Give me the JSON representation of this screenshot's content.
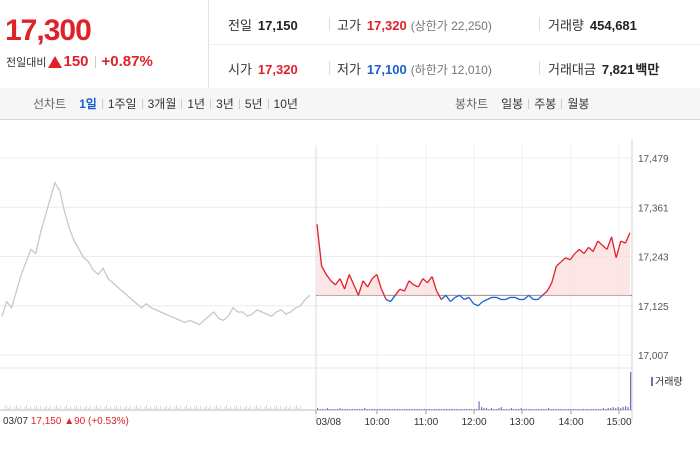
{
  "price": {
    "current": "17,300",
    "change_label": "전일대비",
    "change_abs": "150",
    "change_pct": "+0.87%"
  },
  "stats": {
    "prev_close": {
      "label": "전일",
      "value": "17,150"
    },
    "high": {
      "label": "고가",
      "value": "17,320",
      "note": "(상한가 22,250)"
    },
    "volume": {
      "label": "거래량",
      "value": "454,681"
    },
    "open": {
      "label": "시가",
      "value": "17,320"
    },
    "low": {
      "label": "저가",
      "value": "17,100",
      "note": "(하한가 12,010)"
    },
    "amount": {
      "label": "거래대금",
      "value": "7,821",
      "unit": "백만"
    }
  },
  "line_chart_tabs": {
    "label": "선차트",
    "items": [
      "1일",
      "1주일",
      "3개월",
      "1년",
      "3년",
      "5년",
      "10년"
    ],
    "active": "1일"
  },
  "candle_chart_tabs": {
    "label": "봉차트",
    "items": [
      "일봉",
      "주봉",
      "월봉"
    ]
  },
  "colors": {
    "up": "#e0212a",
    "down": "#1a5fcf",
    "prev_day": "#c8c8c8",
    "volume": "#7b6bbf"
  },
  "chart_data": {
    "type": "line",
    "x_ticks": [
      "03/08",
      "10:00",
      "11:00",
      "12:00",
      "13:00",
      "14:00",
      "15:00"
    ],
    "y_ticks": [
      "17,479",
      "17,361",
      "17,243",
      "17,125",
      "17,007"
    ],
    "ylim": [
      17007,
      17479
    ],
    "reference_price": 17150,
    "volume_label": "거래량",
    "prev_day_label": {
      "date": "03/07",
      "close": "17,150",
      "change": "90",
      "pct": "(+0.53%)"
    },
    "series": [
      {
        "values": [
          17100,
          17135,
          17120,
          17160,
          17200,
          17230,
          17260,
          17250,
          17300,
          17340,
          17380,
          17420,
          17400,
          17350,
          17310,
          17280,
          17260,
          17240,
          17230,
          17210,
          17200,
          17215,
          17190,
          17180,
          17170,
          17160,
          17150,
          17140,
          17130,
          17120,
          17130,
          17120,
          17115,
          17110,
          17105,
          17100,
          17095,
          17090,
          17085,
          17090,
          17085,
          17080,
          17090,
          17100,
          17110,
          17095,
          17090,
          17100,
          17120,
          17110,
          17110,
          17100,
          17105,
          17115,
          17110,
          17105,
          17100,
          17110,
          17115,
          17105,
          17110,
          17120,
          17125,
          17140,
          17150
        ]
      },
      {
        "values": [
          17320,
          17220,
          17200,
          17185,
          17175,
          17190,
          17165,
          17200,
          17175,
          17150,
          17185,
          17170,
          17190,
          17200,
          17165,
          17140,
          17135,
          17150,
          17165,
          17160,
          17185,
          17175,
          17170,
          17190,
          17180,
          17195,
          17160,
          17140,
          17150,
          17135,
          17145,
          17150,
          17140,
          17145,
          17130,
          17125,
          17135,
          17140,
          17145,
          17145,
          17140,
          17140,
          17145,
          17145,
          17140,
          17140,
          17150,
          17140,
          17140,
          17150,
          17160,
          17180,
          17220,
          17230,
          17240,
          17235,
          17250,
          17260,
          17250,
          17265,
          17255,
          17280,
          17270,
          17260,
          17290,
          17240,
          17280,
          17275,
          17300
        ]
      }
    ],
    "volume": [
      2,
      1,
      1,
      1,
      2,
      1,
      1,
      1,
      1,
      2,
      1,
      1,
      1,
      1,
      1,
      1,
      1,
      1,
      1,
      2,
      1,
      1,
      1,
      1,
      1,
      1,
      1,
      1,
      1,
      1,
      1,
      1,
      1,
      1,
      1,
      1,
      1,
      1,
      1,
      1,
      1,
      1,
      1,
      1,
      1,
      1,
      1,
      1,
      1,
      1,
      1,
      1,
      1,
      1,
      1,
      1,
      1,
      1,
      1,
      1,
      1,
      1,
      1,
      1,
      1,
      9,
      3,
      2,
      2,
      1,
      2,
      1,
      1,
      2,
      3,
      1,
      1,
      1,
      2,
      1,
      1,
      1,
      2,
      1,
      1,
      1,
      1,
      1,
      1,
      1,
      1,
      1,
      1,
      2,
      1,
      1,
      1,
      1,
      1,
      1,
      1,
      1,
      1,
      1,
      1,
      1,
      1,
      1,
      1,
      1,
      1,
      1,
      1,
      1,
      1,
      2,
      1,
      2,
      2,
      3,
      2,
      3,
      2,
      3,
      4,
      3,
      40
    ]
  }
}
